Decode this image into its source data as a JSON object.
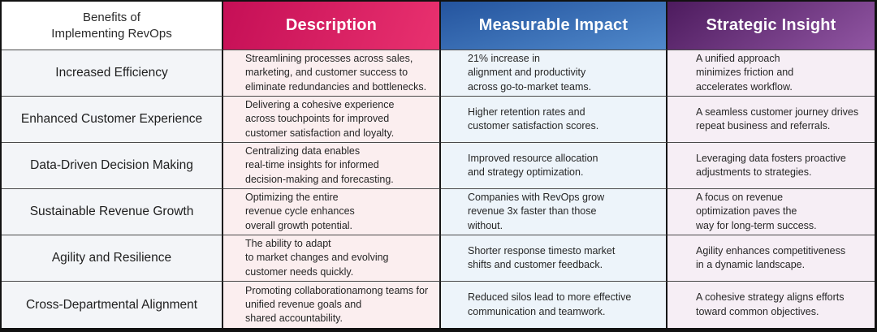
{
  "colors": {
    "description_header_from": "#C50F56",
    "description_header_to": "#E9316F",
    "impact_header_from": "#24549E",
    "impact_header_to": "#5089CB",
    "insight_header_from": "#4D1B5E",
    "insight_header_to": "#9156A3",
    "benefit_column_bg": "#F3F5F8",
    "description_column_bg": "#FBEEEF",
    "impact_column_bg": "#EDF4FA",
    "insight_column_bg": "#F6EEF5",
    "border": "#111111"
  },
  "chart_data": {
    "type": "table",
    "title": "Benefits of Implementing RevOps",
    "corner": "Benefits of\nImplementing RevOps",
    "columns": [
      "Benefits of Implementing RevOps",
      "Description",
      "Measurable Impact",
      "Strategic Insight"
    ],
    "rows": [
      [
        "Increased Efficiency",
        "Streamlining processes across sales,\nmarketing, and customer success to\neliminate redundancies and bottlenecks.",
        "21% increase in\nalignment and productivity\nacross go-to-market teams.",
        "A unified approach\nminimizes friction and\naccelerates workflow."
      ],
      [
        "Enhanced Customer Experience",
        "Delivering a cohesive experience\nacross touchpoints for improved\ncustomer satisfaction and loyalty.",
        "Higher retention rates and\ncustomer satisfaction scores.",
        "A seamless customer journey drives\nrepeat business and referrals."
      ],
      [
        "Data-Driven Decision Making",
        "Centralizing data enables\nreal-time insights for informed\ndecision-making and forecasting.",
        "Improved resource allocation\nand strategy optimization.",
        "Leveraging data fosters proactive\nadjustments to strategies."
      ],
      [
        "Sustainable Revenue Growth",
        "Optimizing the entire\nrevenue cycle enhances\noverall growth potential.",
        "Companies with RevOps grow\nrevenue 3x faster than those\nwithout.",
        "A focus on revenue\noptimization paves the\nway for long-term success."
      ],
      [
        "Agility and Resilience",
        "The ability to adapt\nto market changes and evolving\ncustomer needs quickly.",
        "Shorter response timesto market\nshifts and customer feedback.",
        "Agility enhances competitiveness\nin a dynamic landscape."
      ],
      [
        "Cross-Departmental Alignment",
        "Promoting collaborationamong teams for\nunified revenue goals and\nshared accountability.",
        "Reduced silos lead to more effective\ncommunication and teamwork.",
        "A cohesive strategy aligns efforts\ntoward common objectives."
      ]
    ]
  }
}
